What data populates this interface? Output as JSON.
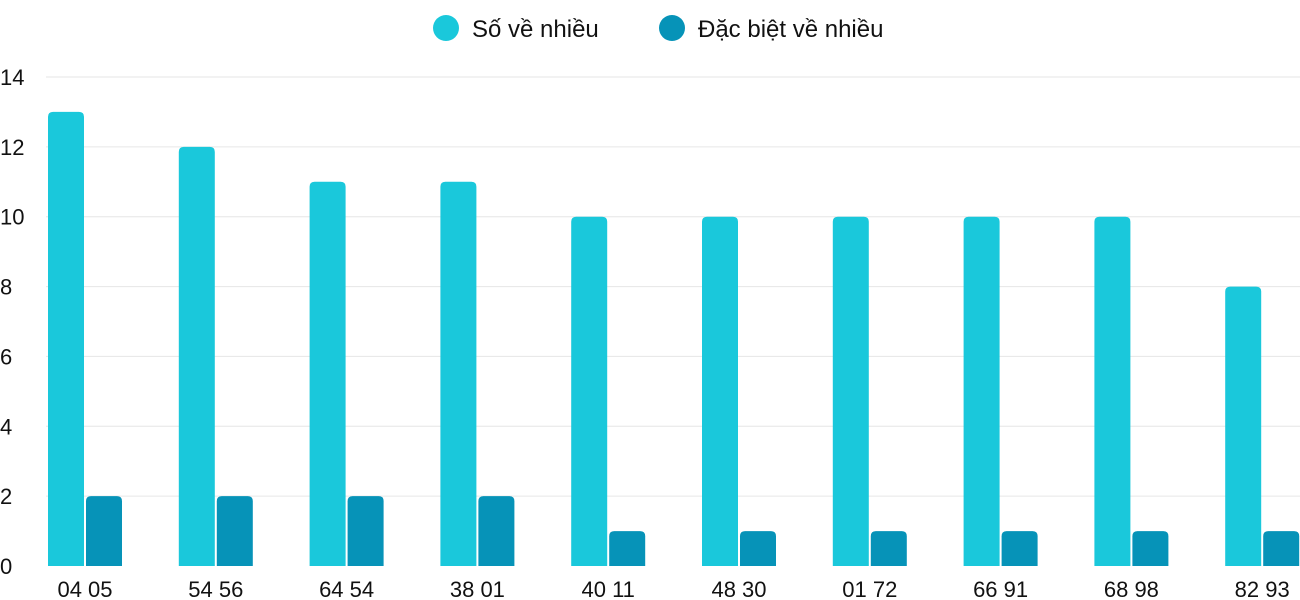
{
  "chart_data": {
    "type": "bar",
    "categories": [
      "04 05",
      "54 56",
      "64 54",
      "38 01",
      "40 11",
      "48 30",
      "01 72",
      "66 91",
      "68 98",
      "82 93"
    ],
    "series": [
      {
        "name": "Số về nhiều",
        "values": [
          13,
          12,
          11,
          11,
          10,
          10,
          10,
          10,
          10,
          8
        ],
        "color": "#1ac8db"
      },
      {
        "name": "Đặc biệt về nhiều",
        "values": [
          2,
          2,
          2,
          2,
          1,
          1,
          1,
          1,
          1,
          1
        ],
        "color": "#0693b8"
      }
    ],
    "ylim": [
      0,
      14
    ],
    "yticks": [
      "0",
      "2",
      "4",
      "6",
      "8",
      "10",
      "12",
      "14"
    ],
    "grid": true,
    "legend_position": "top-center"
  }
}
